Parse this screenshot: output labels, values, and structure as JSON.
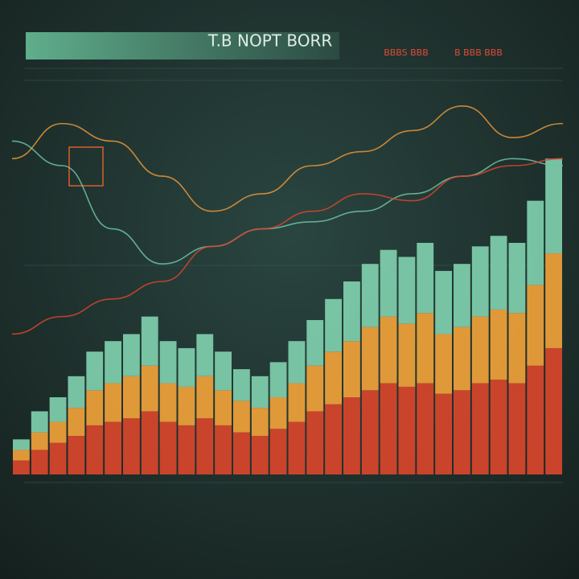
{
  "chart_data": [
    {
      "type": "bar",
      "title": "T.B NOPT BORR",
      "annotations": [
        "BBBS BBB",
        "B BBB BBB"
      ],
      "stacked": true,
      "ylim": [
        0,
        110
      ],
      "series": [
        {
          "name": null,
          "color": "#d9452b",
          "values": [
            4,
            7,
            9,
            11,
            14,
            15,
            16,
            18,
            15,
            14,
            16,
            14,
            12,
            11,
            13,
            15,
            18,
            20,
            22,
            24,
            26,
            25,
            26,
            23,
            24,
            26,
            27,
            26,
            31,
            36
          ]
        },
        {
          "name": null,
          "color": "#f0a23a",
          "values": [
            3,
            5,
            6,
            8,
            10,
            11,
            12,
            13,
            11,
            11,
            12,
            10,
            9,
            8,
            9,
            11,
            13,
            15,
            16,
            18,
            19,
            18,
            20,
            17,
            18,
            19,
            20,
            20,
            23,
            27
          ]
        },
        {
          "name": null,
          "color": "#7fcfae",
          "values": [
            3,
            6,
            7,
            9,
            11,
            12,
            12,
            14,
            12,
            11,
            12,
            11,
            9,
            9,
            10,
            12,
            13,
            15,
            17,
            18,
            19,
            19,
            20,
            18,
            18,
            20,
            21,
            20,
            24,
            27
          ]
        }
      ]
    },
    {
      "type": "line",
      "ylim": [
        0,
        110
      ],
      "series": [
        {
          "name": null,
          "color": "#e8953a",
          "values": [
            90,
            100,
            95,
            85,
            75,
            80,
            88,
            92,
            98,
            105,
            96,
            100
          ]
        },
        {
          "name": null,
          "color": "#6fc2a4",
          "values": [
            95,
            88,
            70,
            60,
            65,
            70,
            72,
            75,
            80,
            85,
            90,
            88
          ]
        },
        {
          "name": null,
          "color": "#d9452b",
          "values": [
            40,
            45,
            50,
            55,
            65,
            70,
            75,
            80,
            78,
            85,
            88,
            90
          ]
        }
      ]
    }
  ]
}
